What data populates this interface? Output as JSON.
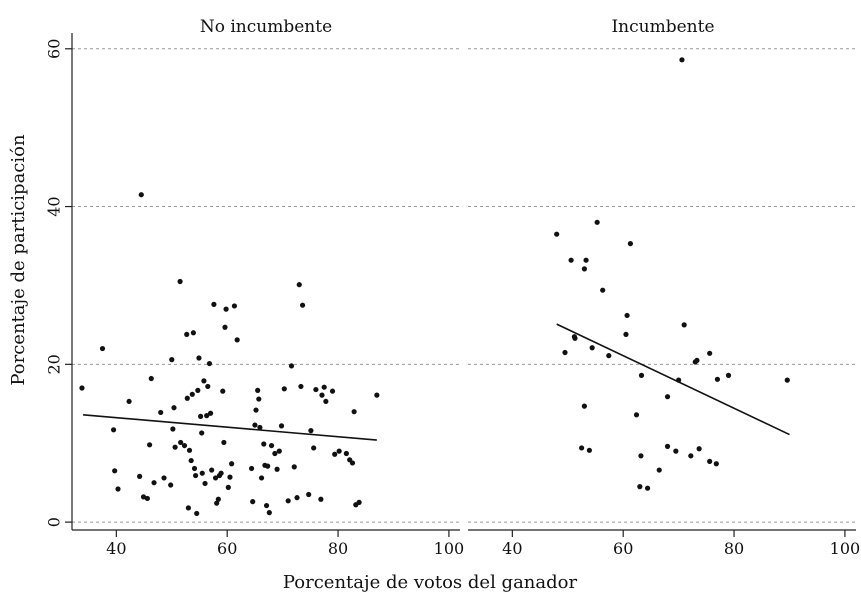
{
  "chart_data": {
    "type": "scatter",
    "xlabel": "Porcentaje de votos del ganador",
    "ylabel": "Porcentaje de participación",
    "xlim": [
      32,
      102
    ],
    "ylim": [
      -1,
      62
    ],
    "x_ticks": [
      40,
      60,
      80,
      100
    ],
    "y_ticks": [
      0,
      20,
      40,
      60
    ],
    "grid": "horizontal-dashed",
    "panels": [
      {
        "title": "No incumbente",
        "fit_line": [
          [
            34,
            13.6
          ],
          [
            87,
            10.4
          ]
        ],
        "points": [
          [
            33.8,
            17
          ],
          [
            37.5,
            22
          ],
          [
            39.5,
            11.7
          ],
          [
            39.7,
            6.5
          ],
          [
            40.3,
            4.2
          ],
          [
            42.3,
            15.3
          ],
          [
            44.2,
            5.8
          ],
          [
            44.5,
            41.5
          ],
          [
            44.9,
            3.2
          ],
          [
            45.6,
            3.0
          ],
          [
            46.0,
            9.8
          ],
          [
            46.3,
            18.2
          ],
          [
            46.8,
            5.0
          ],
          [
            48.0,
            13.9
          ],
          [
            48.6,
            5.6
          ],
          [
            49.8,
            4.7
          ],
          [
            50.0,
            20.6
          ],
          [
            50.2,
            11.8
          ],
          [
            50.4,
            14.5
          ],
          [
            50.6,
            9.5
          ],
          [
            51.5,
            30.5
          ],
          [
            51.6,
            10.1
          ],
          [
            52.3,
            9.7
          ],
          [
            52.7,
            23.8
          ],
          [
            52.8,
            15.7
          ],
          [
            53.0,
            1.8
          ],
          [
            53.2,
            9.1
          ],
          [
            53.5,
            7.8
          ],
          [
            53.7,
            16.2
          ],
          [
            53.9,
            24.0
          ],
          [
            54.1,
            6.8
          ],
          [
            54.3,
            5.9
          ],
          [
            54.5,
            1.1
          ],
          [
            54.7,
            16.7
          ],
          [
            54.9,
            20.8
          ],
          [
            55.2,
            13.4
          ],
          [
            55.4,
            11.3
          ],
          [
            55.5,
            6.2
          ],
          [
            55.8,
            17.9
          ],
          [
            56.0,
            4.9
          ],
          [
            56.3,
            13.5
          ],
          [
            56.5,
            17.2
          ],
          [
            56.8,
            20.1
          ],
          [
            57.0,
            13.8
          ],
          [
            57.2,
            6.6
          ],
          [
            57.6,
            27.6
          ],
          [
            57.9,
            5.6
          ],
          [
            58.1,
            2.4
          ],
          [
            58.4,
            2.9
          ],
          [
            58.6,
            5.9
          ],
          [
            58.9,
            6.2
          ],
          [
            59.2,
            16.6
          ],
          [
            59.4,
            10.1
          ],
          [
            59.6,
            24.7
          ],
          [
            59.8,
            27.0
          ],
          [
            60.2,
            4.4
          ],
          [
            60.5,
            5.7
          ],
          [
            60.8,
            7.4
          ],
          [
            61.3,
            27.4
          ],
          [
            61.8,
            23.1
          ],
          [
            64.4,
            6.8
          ],
          [
            64.6,
            2.6
          ],
          [
            65.0,
            12.3
          ],
          [
            65.2,
            14.2
          ],
          [
            65.5,
            16.7
          ],
          [
            65.7,
            15.6
          ],
          [
            65.9,
            12.0
          ],
          [
            66.2,
            5.6
          ],
          [
            66.6,
            9.9
          ],
          [
            66.8,
            7.2
          ],
          [
            67.1,
            2.1
          ],
          [
            67.3,
            7.1
          ],
          [
            67.6,
            1.2
          ],
          [
            68.0,
            9.7
          ],
          [
            68.6,
            8.7
          ],
          [
            69.0,
            6.7
          ],
          [
            69.4,
            9.0
          ],
          [
            69.8,
            12.2
          ],
          [
            70.3,
            16.9
          ],
          [
            71.0,
            2.7
          ],
          [
            71.6,
            19.8
          ],
          [
            72.1,
            7.0
          ],
          [
            72.6,
            3.1
          ],
          [
            73.0,
            30.1
          ],
          [
            73.3,
            17.2
          ],
          [
            73.6,
            27.5
          ],
          [
            74.7,
            3.5
          ],
          [
            75.1,
            11.6
          ],
          [
            75.6,
            9.4
          ],
          [
            76.0,
            16.8
          ],
          [
            76.9,
            2.9
          ],
          [
            77.1,
            16.1
          ],
          [
            77.5,
            17.1
          ],
          [
            77.8,
            15.3
          ],
          [
            79.0,
            16.6
          ],
          [
            79.4,
            8.6
          ],
          [
            80.2,
            9.0
          ],
          [
            81.5,
            8.7
          ],
          [
            82.1,
            7.9
          ],
          [
            82.6,
            7.5
          ],
          [
            82.9,
            14.0
          ],
          [
            83.2,
            2.2
          ],
          [
            83.8,
            2.5
          ],
          [
            87.0,
            16.1
          ]
        ]
      },
      {
        "title": "Incumbente",
        "fit_line": [
          [
            48,
            25.1
          ],
          [
            90,
            11.1
          ]
        ],
        "points": [
          [
            48.0,
            36.5
          ],
          [
            49.5,
            21.5
          ],
          [
            50.6,
            33.2
          ],
          [
            51.2,
            23.5
          ],
          [
            51.3,
            23.3
          ],
          [
            52.5,
            9.4
          ],
          [
            53.0,
            14.7
          ],
          [
            53.0,
            32.1
          ],
          [
            53.3,
            33.2
          ],
          [
            53.9,
            9.1
          ],
          [
            54.4,
            22.1
          ],
          [
            55.3,
            38.0
          ],
          [
            56.3,
            29.4
          ],
          [
            57.4,
            21.1
          ],
          [
            60.5,
            23.8
          ],
          [
            60.7,
            26.2
          ],
          [
            61.3,
            35.3
          ],
          [
            62.4,
            13.6
          ],
          [
            63.0,
            4.5
          ],
          [
            63.2,
            8.4
          ],
          [
            63.3,
            18.6
          ],
          [
            64.4,
            4.3
          ],
          [
            66.5,
            6.6
          ],
          [
            68.0,
            9.6
          ],
          [
            68.0,
            15.9
          ],
          [
            69.5,
            9.0
          ],
          [
            70.0,
            18.0
          ],
          [
            70.6,
            58.6
          ],
          [
            71.0,
            25.0
          ],
          [
            72.2,
            8.4
          ],
          [
            73.0,
            20.3
          ],
          [
            73.3,
            20.5
          ],
          [
            73.7,
            9.3
          ],
          [
            75.6,
            7.7
          ],
          [
            75.6,
            21.4
          ],
          [
            76.8,
            7.4
          ],
          [
            77.0,
            18.1
          ],
          [
            79.0,
            18.6
          ],
          [
            89.6,
            18.0
          ]
        ]
      }
    ]
  }
}
